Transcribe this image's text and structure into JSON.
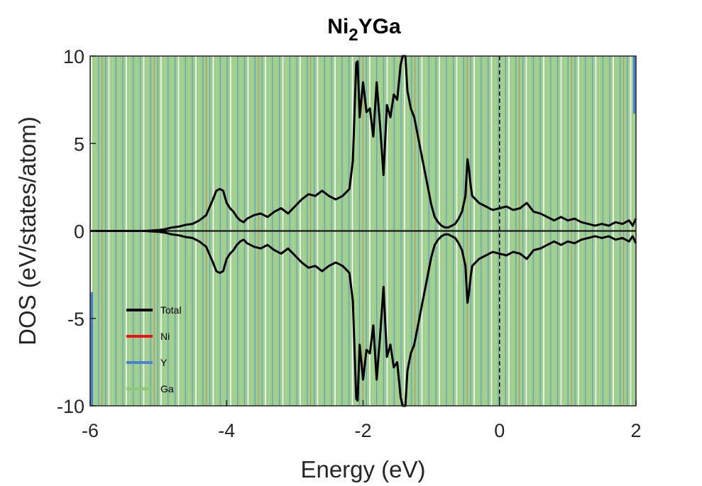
{
  "chart_data": {
    "type": "line",
    "title": "Ni",
    "title_sub": "2",
    "title_suffix": "YGa",
    "xlabel": "Energy (eV)",
    "ylabel": "DOS (eV/states/atom)",
    "xlim": [
      -6,
      2
    ],
    "ylim": [
      -10,
      10
    ],
    "xticks": [
      "-6",
      "-4",
      "-2",
      "0",
      "2"
    ],
    "yticks": [
      "10",
      "5",
      "0",
      "-5",
      "-10"
    ],
    "fermi_level": 0,
    "legend_position": "bottom-left",
    "series": [
      {
        "name": "Total",
        "color": "#000000",
        "x": [
          -6.0,
          -5.5,
          -5.2,
          -5.0,
          -4.9,
          -4.8,
          -4.7,
          -4.6,
          -4.5,
          -4.4,
          -4.3,
          -4.2,
          -4.15,
          -4.1,
          -4.05,
          -4.0,
          -3.95,
          -3.9,
          -3.85,
          -3.8,
          -3.75,
          -3.7,
          -3.6,
          -3.5,
          -3.4,
          -3.3,
          -3.2,
          -3.1,
          -3.0,
          -2.9,
          -2.8,
          -2.7,
          -2.6,
          -2.5,
          -2.4,
          -2.3,
          -2.2,
          -2.15,
          -2.1,
          -2.08,
          -2.05,
          -2.0,
          -1.95,
          -1.9,
          -1.85,
          -1.8,
          -1.75,
          -1.7,
          -1.65,
          -1.6,
          -1.55,
          -1.5,
          -1.45,
          -1.42,
          -1.38,
          -1.35,
          -1.3,
          -1.25,
          -1.2,
          -1.15,
          -1.1,
          -1.05,
          -1.0,
          -0.95,
          -0.9,
          -0.85,
          -0.8,
          -0.75,
          -0.7,
          -0.65,
          -0.6,
          -0.55,
          -0.5,
          -0.47,
          -0.45,
          -0.42,
          -0.4,
          -0.35,
          -0.3,
          -0.25,
          -0.2,
          -0.1,
          0.0,
          0.1,
          0.2,
          0.3,
          0.4,
          0.5,
          0.6,
          0.7,
          0.8,
          0.9,
          1.0,
          1.1,
          1.2,
          1.3,
          1.4,
          1.5,
          1.6,
          1.7,
          1.8,
          1.9,
          1.95,
          2.0
        ],
        "y": [
          0.0,
          0.0,
          0.0,
          0.05,
          0.1,
          0.2,
          0.25,
          0.35,
          0.4,
          0.6,
          0.9,
          1.8,
          2.3,
          2.4,
          2.3,
          1.6,
          1.3,
          1.1,
          0.8,
          0.6,
          0.5,
          0.7,
          0.9,
          1.0,
          0.8,
          1.1,
          1.3,
          1.0,
          1.4,
          1.8,
          2.1,
          2.0,
          2.3,
          2.0,
          1.8,
          2.0,
          2.4,
          4.0,
          9.6,
          9.7,
          6.5,
          8.5,
          6.8,
          7.0,
          5.4,
          8.5,
          6.0,
          3.2,
          7.2,
          6.5,
          7.8,
          7.5,
          9.5,
          10.0,
          10.0,
          8.0,
          7.0,
          6.5,
          5.5,
          4.5,
          3.5,
          2.5,
          1.5,
          0.8,
          0.5,
          0.3,
          0.2,
          0.2,
          0.3,
          0.4,
          0.7,
          1.1,
          2.0,
          4.1,
          3.6,
          2.5,
          2.0,
          1.8,
          1.6,
          1.5,
          1.4,
          1.2,
          1.3,
          1.4,
          1.2,
          1.3,
          1.6,
          1.1,
          1.0,
          0.8,
          0.6,
          0.8,
          0.6,
          0.7,
          0.5,
          0.4,
          0.3,
          0.4,
          0.3,
          0.5,
          0.4,
          0.6,
          0.3,
          0.7
        ]
      },
      {
        "name": "Ni",
        "color": "#e8141a"
      },
      {
        "name": "Y",
        "color": "#4c7fd6"
      },
      {
        "name": "Ga",
        "color": "#8ec77a"
      }
    ]
  }
}
